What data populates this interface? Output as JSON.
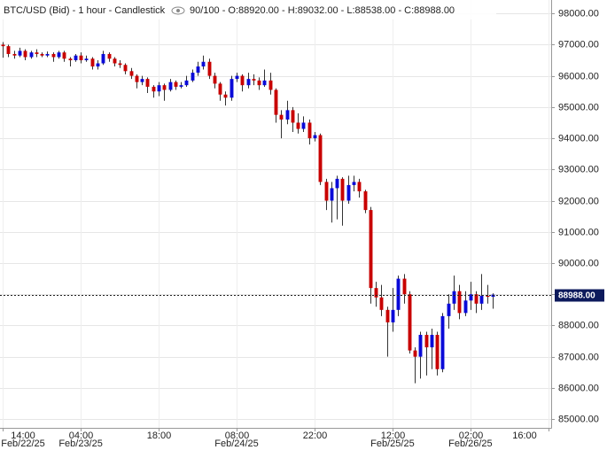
{
  "chart_data": {
    "type": "candlestick",
    "title": "BTC/USD (Bid) - 1 hour - Candlestick",
    "info": "90/100 - O:88920.00 - H:89032.00 - L:88538.00 - C:88988.00",
    "up_color": "#0a0ad8",
    "down_color": "#c80000",
    "grid": true,
    "x": [
      0,
      1,
      2,
      3,
      4,
      5,
      6,
      7,
      8,
      9,
      10,
      11,
      12,
      13,
      14,
      15,
      16,
      17,
      18,
      19,
      20,
      21,
      22,
      23,
      24,
      25,
      26,
      27,
      28,
      29,
      30,
      31,
      32,
      33,
      34,
      35,
      36,
      37,
      38,
      39,
      40,
      41,
      42,
      43,
      44,
      45,
      46,
      47,
      48,
      49,
      50,
      51,
      52,
      53,
      54,
      55,
      56,
      57,
      58,
      59,
      60,
      61,
      62,
      63,
      64,
      65,
      66,
      67,
      68,
      69,
      70,
      71,
      72,
      73,
      74,
      75,
      76,
      77,
      78,
      79,
      80,
      81,
      82,
      83,
      84,
      85,
      86,
      87,
      88
    ],
    "open": [
      97000,
      96950,
      96700,
      96650,
      96800,
      96600,
      96750,
      96700,
      96650,
      96700,
      96600,
      96750,
      96550,
      96500,
      96650,
      96500,
      96550,
      96300,
      96400,
      96700,
      96550,
      96400,
      96350,
      96150,
      96000,
      95800,
      95900,
      95650,
      95500,
      95700,
      95550,
      95800,
      95650,
      95700,
      95850,
      96100,
      96300,
      96450,
      96000,
      95750,
      95400,
      95300,
      95900,
      96000,
      95700,
      95900,
      95850,
      95700,
      95850,
      95550,
      94750,
      94600,
      94900,
      94500,
      94300,
      94500,
      94000,
      94100,
      92600,
      92000,
      92400,
      92700,
      92000,
      92500,
      92600,
      92300,
      91700,
      89200,
      88900,
      88500,
      88100,
      88500,
      89500,
      89000,
      87200,
      87000,
      87700,
      87300,
      87700,
      86600,
      88300,
      88700,
      89100,
      88400,
      88800,
      89000,
      88700,
      88950,
      88920
    ],
    "high": [
      97080,
      97000,
      96800,
      96900,
      96850,
      96800,
      96850,
      96750,
      96780,
      96750,
      96800,
      96800,
      96600,
      96700,
      96750,
      96650,
      96600,
      96500,
      96800,
      96750,
      96600,
      96500,
      96400,
      96250,
      96050,
      96000,
      95950,
      95700,
      95800,
      95750,
      95900,
      95850,
      95800,
      96000,
      96200,
      96450,
      96650,
      96550,
      96100,
      95800,
      95500,
      96000,
      96100,
      96050,
      96100,
      96050,
      95950,
      96200,
      96100,
      95600,
      94900,
      95200,
      95000,
      94800,
      94700,
      94600,
      94200,
      94150,
      92700,
      92600,
      92800,
      92750,
      92800,
      92800,
      92700,
      92350,
      91800,
      89400,
      89300,
      88600,
      89200,
      89600,
      89650,
      89100,
      87300,
      87800,
      87800,
      87900,
      87800,
      88400,
      89000,
      89600,
      89300,
      89100,
      89400,
      89100,
      89650,
      89300,
      89032
    ],
    "low": [
      96580,
      96600,
      96550,
      96600,
      96500,
      96550,
      96600,
      96600,
      96600,
      96450,
      96550,
      96450,
      96300,
      96450,
      96400,
      96450,
      96200,
      96200,
      96350,
      96450,
      96300,
      96250,
      96050,
      95900,
      95600,
      95700,
      95450,
      95300,
      95350,
      95200,
      95500,
      95550,
      95600,
      95650,
      95800,
      96000,
      96200,
      95900,
      95600,
      95200,
      95050,
      95200,
      95800,
      95500,
      95600,
      95700,
      95550,
      95650,
      95400,
      94500,
      94000,
      94450,
      94200,
      94150,
      94200,
      93800,
      93900,
      92500,
      91700,
      91300,
      91400,
      91200,
      91900,
      92300,
      92100,
      91600,
      88700,
      88600,
      88300,
      87000,
      87800,
      88300,
      88700,
      87100,
      86150,
      86300,
      86400,
      86600,
      86400,
      86500,
      87900,
      88500,
      88200,
      88300,
      88500,
      88400,
      88500,
      88700,
      88538
    ],
    "close": [
      96950,
      96700,
      96650,
      96800,
      96600,
      96750,
      96700,
      96650,
      96700,
      96600,
      96750,
      96550,
      96500,
      96650,
      96500,
      96550,
      96300,
      96400,
      96700,
      96550,
      96400,
      96350,
      96150,
      96000,
      95800,
      95900,
      95650,
      95500,
      95700,
      95550,
      95800,
      95650,
      95700,
      95850,
      96100,
      96300,
      96450,
      96000,
      95750,
      95400,
      95300,
      95900,
      96000,
      95700,
      95900,
      95850,
      95700,
      95850,
      95550,
      94750,
      94600,
      94900,
      94500,
      94300,
      94500,
      94000,
      94100,
      92600,
      92000,
      92400,
      92700,
      92000,
      92500,
      92600,
      92300,
      91700,
      89200,
      88900,
      88500,
      88100,
      88500,
      89500,
      89000,
      87200,
      87000,
      87700,
      87300,
      87700,
      86600,
      88300,
      88700,
      89100,
      88400,
      88800,
      89000,
      88700,
      88950,
      88920,
      88988
    ],
    "xlim": [
      -0.5,
      98.5
    ],
    "xticks": [
      {
        "value": 0,
        "label": "14:00"
      },
      {
        "value": 14,
        "label": "04:00"
      },
      {
        "value": 28,
        "label": "18:00"
      },
      {
        "value": 42,
        "label": "08:00"
      },
      {
        "value": 56,
        "label": "22:00"
      },
      {
        "value": 70,
        "label": "12:00"
      },
      {
        "value": 84,
        "label": "02:00"
      },
      {
        "value": 98,
        "label": "16:00"
      }
    ],
    "date_labels": [
      {
        "value": 0,
        "label": "Feb/22/25"
      },
      {
        "value": 14,
        "label": "Feb/23/25"
      },
      {
        "value": 42,
        "label": "Feb/24/25"
      },
      {
        "value": 70,
        "label": "Feb/25/25"
      },
      {
        "value": 84,
        "label": "Feb/26/25"
      }
    ],
    "ylim": [
      84720,
      98430
    ],
    "yticks": [
      {
        "value": 85000,
        "label": "85000.00"
      },
      {
        "value": 86000,
        "label": "86000.00"
      },
      {
        "value": 87000,
        "label": "87000.00"
      },
      {
        "value": 88000,
        "label": "88000.00"
      },
      {
        "value": 89000,
        "label": "89000.00"
      },
      {
        "value": 90000,
        "label": "90000.00"
      },
      {
        "value": 91000,
        "label": "91000.00"
      },
      {
        "value": 92000,
        "label": "92000.00"
      },
      {
        "value": 93000,
        "label": "93000.00"
      },
      {
        "value": 94000,
        "label": "94000.00"
      },
      {
        "value": 95000,
        "label": "95000.00"
      },
      {
        "value": 96000,
        "label": "96000.00"
      },
      {
        "value": 97000,
        "label": "97000.00"
      },
      {
        "value": 98000,
        "label": "98000.00"
      }
    ],
    "price_line": {
      "value": 88988,
      "label": "88988.00"
    }
  }
}
